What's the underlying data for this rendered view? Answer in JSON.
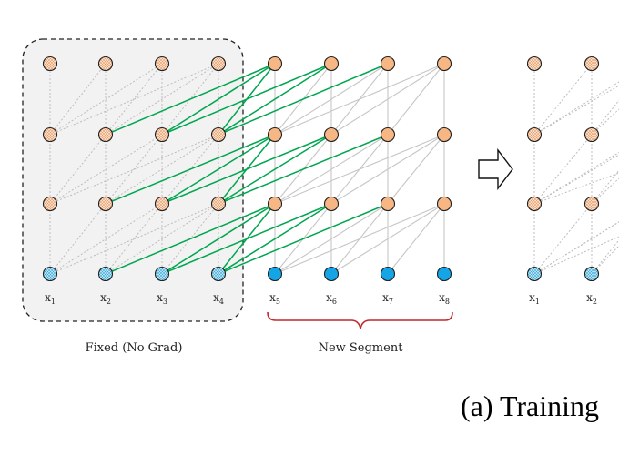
{
  "labels": {
    "fixed_segment": "Fixed (No Grad)",
    "new_segment": "New Segment",
    "caption": "(a) Training"
  },
  "left_panel": {
    "tokens": [
      {
        "base": "x",
        "sub": "1"
      },
      {
        "base": "x",
        "sub": "2"
      },
      {
        "base": "x",
        "sub": "3"
      },
      {
        "base": "x",
        "sub": "4"
      },
      {
        "base": "x",
        "sub": "5"
      },
      {
        "base": "x",
        "sub": "6"
      },
      {
        "base": "x",
        "sub": "7"
      },
      {
        "base": "x",
        "sub": "8"
      }
    ],
    "layers": 4
  },
  "right_panel": {
    "tokens": [
      {
        "base": "x",
        "sub": "1"
      },
      {
        "base": "x",
        "sub": "2"
      }
    ]
  },
  "colors": {
    "hidden_node": "#f6b784",
    "hidden_node_faded": "#fbe3cf",
    "input_node_new": "#14a5e6",
    "input_node_faded": "#b7e0f2",
    "cached_edge": "#00a64f",
    "dotted_edge": "#bdbdbd",
    "solid_edge": "#c6c6c6",
    "fixed_box_fill": "#f2f2f2",
    "bracket": "#c0282d"
  }
}
